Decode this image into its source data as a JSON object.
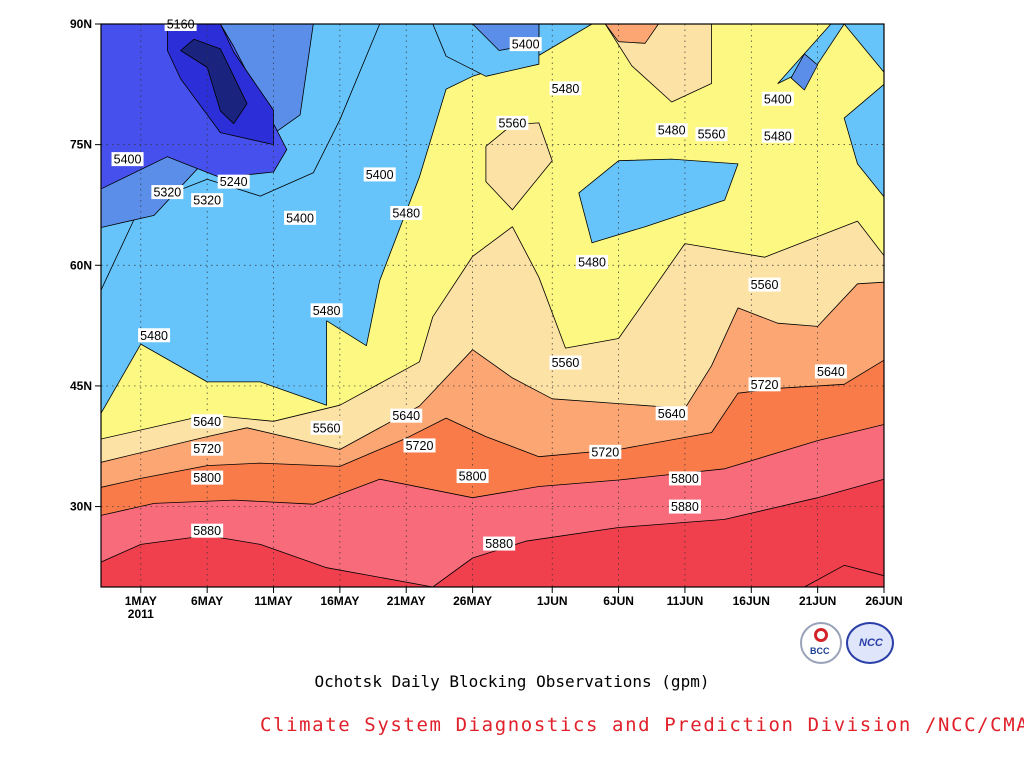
{
  "figure": {
    "title": "Ochotsk Daily Blocking Observations (gpm)",
    "credit": "Climate System Diagnostics and Prediction Division /NCC/CMA",
    "logos": [
      {
        "name": "bcc-logo",
        "text": "BCC"
      },
      {
        "name": "ncc-logo",
        "text": "NCC"
      }
    ]
  },
  "chart_data": {
    "type": "heatmap",
    "subtype": "filled-contour",
    "title": "Ochotsk Daily Blocking Observations (gpm)",
    "xlabel": "",
    "ylabel": "",
    "x_range": [
      "2011-04-28",
      "2011-06-26"
    ],
    "y_range": [
      20,
      90
    ],
    "x_ticks": [
      {
        "date": "2011-05-01",
        "label": "1MAY",
        "sublabel": "2011"
      },
      {
        "date": "2011-05-06",
        "label": "6MAY"
      },
      {
        "date": "2011-05-11",
        "label": "11MAY"
      },
      {
        "date": "2011-05-16",
        "label": "16MAY"
      },
      {
        "date": "2011-05-21",
        "label": "21MAY"
      },
      {
        "date": "2011-05-26",
        "label": "26MAY"
      },
      {
        "date": "2011-06-01",
        "label": "1JUN"
      },
      {
        "date": "2011-06-06",
        "label": "6JUN"
      },
      {
        "date": "2011-06-11",
        "label": "11JUN"
      },
      {
        "date": "2011-06-16",
        "label": "16JUN"
      },
      {
        "date": "2011-06-21",
        "label": "21JUN"
      },
      {
        "date": "2011-06-26",
        "label": "26JUN"
      }
    ],
    "y_ticks": [
      {
        "lat": 30,
        "label": "30N"
      },
      {
        "lat": 45,
        "label": "45N"
      },
      {
        "lat": 60,
        "label": "60N"
      },
      {
        "lat": 75,
        "label": "75N"
      },
      {
        "lat": 90,
        "label": "90N"
      }
    ],
    "grid": true,
    "contour_levels": [
      5160,
      5240,
      5320,
      5400,
      5480,
      5560,
      5640,
      5720,
      5800,
      5880
    ],
    "fill_colors": [
      "#1a237d",
      "#2c2fd8",
      "#4650ec",
      "#5b8ee8",
      "#66c4fb",
      "#fcf882",
      "#fde2a6",
      "#fba673",
      "#fa7b4a",
      "#f76b7b",
      "#f0404e"
    ],
    "bands": [
      {
        "low": 5880,
        "high": null,
        "color": "#f0404e",
        "poly": [
          [
            "2011-04-28",
            20
          ],
          [
            "2011-06-26",
            20
          ],
          [
            "2011-06-26",
            33.4
          ],
          [
            "2011-06-21",
            31.1
          ],
          [
            "2011-06-14",
            28.4
          ],
          [
            "2011-06-06",
            27.4
          ],
          [
            "2011-05-30",
            25.7
          ],
          [
            "2011-05-26",
            23.6
          ],
          [
            "2011-05-23",
            20
          ],
          [
            "2011-05-15",
            22.4
          ],
          [
            "2011-05-10",
            25.3
          ],
          [
            "2011-05-06",
            26.4
          ],
          [
            "2011-05-01",
            25.3
          ],
          [
            "2011-04-28",
            23.1
          ]
        ]
      },
      {
        "low": 5800,
        "high": 5880,
        "color": "#f76b7b",
        "poly": [
          [
            "2011-04-28",
            20
          ],
          [
            "2011-06-26",
            20
          ],
          [
            "2011-06-26",
            40.2
          ],
          [
            "2011-06-21",
            38.2
          ],
          [
            "2011-06-14",
            34.7
          ],
          [
            "2011-06-06",
            33.3
          ],
          [
            "2011-05-31",
            32.5
          ],
          [
            "2011-05-26",
            31.1
          ],
          [
            "2011-05-19",
            33.4
          ],
          [
            "2011-05-14",
            30.3
          ],
          [
            "2011-05-08",
            30.8
          ],
          [
            "2011-05-02",
            30.4
          ],
          [
            "2011-04-28",
            28.9
          ]
        ]
      },
      {
        "low": 5720,
        "high": 5800,
        "color": "#fa7b4a",
        "poly": [
          [
            "2011-04-28",
            20
          ],
          [
            "2011-06-26",
            20
          ],
          [
            "2011-06-26",
            48.2
          ],
          [
            "2011-06-23",
            45.2
          ],
          [
            "2011-06-18",
            44.7
          ],
          [
            "2011-06-15",
            44.1
          ],
          [
            "2011-06-13",
            39.2
          ],
          [
            "2011-06-06",
            37.1
          ],
          [
            "2011-05-31",
            36.2
          ],
          [
            "2011-05-27",
            38.7
          ],
          [
            "2011-05-24",
            41.0
          ],
          [
            "2011-05-21",
            38.5
          ],
          [
            "2011-05-16",
            35.0
          ],
          [
            "2011-05-10",
            35.4
          ],
          [
            "2011-05-06",
            35.1
          ],
          [
            "2011-05-01",
            33.5
          ],
          [
            "2011-04-28",
            32.4
          ]
        ]
      },
      {
        "low": 5640,
        "high": 5720,
        "color": "#fba673",
        "poly": [
          [
            "2011-04-28",
            20
          ],
          [
            "2011-06-26",
            20
          ],
          [
            "2011-06-26",
            57.9
          ],
          [
            "2011-06-24",
            57.7
          ],
          [
            "2011-06-21",
            52.4
          ],
          [
            "2011-06-18",
            52.8
          ],
          [
            "2011-06-15",
            54.7
          ],
          [
            "2011-06-13",
            47.5
          ],
          [
            "2011-06-11",
            42.2
          ],
          [
            "2011-06-06",
            42.8
          ],
          [
            "2011-06-01",
            43.4
          ],
          [
            "2011-05-29",
            46.0
          ],
          [
            "2011-05-26",
            49.5
          ],
          [
            "2011-05-22",
            42.5
          ],
          [
            "2011-05-16",
            37.1
          ],
          [
            "2011-05-09",
            39.8
          ],
          [
            "2011-05-06",
            38.7
          ],
          [
            "2011-04-28",
            35.5
          ]
        ]
      },
      {
        "low": 5560,
        "high": 5640,
        "color": "#fde2a6",
        "poly": [
          [
            "2011-04-28",
            20
          ],
          [
            "2011-06-26",
            20
          ],
          [
            "2011-06-26",
            61.2
          ],
          [
            "2011-06-24",
            65.5
          ],
          [
            "2011-06-17",
            61.0
          ],
          [
            "2011-06-11",
            62.7
          ],
          [
            "2011-06-06",
            50.9
          ],
          [
            "2011-06-02",
            49.7
          ],
          [
            "2011-05-31",
            58.5
          ],
          [
            "2011-05-29",
            64.8
          ],
          [
            "2011-05-26",
            61.1
          ],
          [
            "2011-05-23",
            53.6
          ],
          [
            "2011-05-22",
            48.0
          ],
          [
            "2011-05-16",
            42.6
          ],
          [
            "2011-05-11",
            40.6
          ],
          [
            "2011-05-06",
            41.4
          ],
          [
            "2011-04-28",
            38.4
          ]
        ]
      },
      {
        "low": 5480,
        "high": 5560,
        "color": "#fcf882",
        "poly": [
          [
            "2011-04-28",
            20
          ],
          [
            "2011-06-26",
            20
          ],
          [
            "2011-06-26",
            84.0
          ],
          [
            "2011-06-23",
            90.0
          ],
          [
            "2011-06-04",
            90.0
          ],
          [
            "2011-05-31",
            86.1
          ],
          [
            "2011-05-26",
            83.5
          ],
          [
            "2011-05-24",
            81.9
          ],
          [
            "2011-05-22",
            71.0
          ],
          [
            "2011-05-19",
            58.1
          ],
          [
            "2011-05-18",
            50.0
          ],
          [
            "2011-05-15",
            53.1
          ],
          [
            "2011-05-15",
            42.6
          ],
          [
            "2011-05-10",
            45.5
          ],
          [
            "2011-05-06",
            45.5
          ],
          [
            "2011-05-01",
            50.2
          ],
          [
            "2011-04-28",
            41.6
          ]
        ]
      },
      {
        "low": 5400,
        "high": 5480,
        "color": "#66c4fb",
        "poly": [
          [
            "2011-04-28",
            56.9
          ],
          [
            "2011-05-01",
            67.5
          ],
          [
            "2011-05-06",
            70.7
          ],
          [
            "2011-05-10",
            68.6
          ],
          [
            "2011-05-14",
            71.5
          ],
          [
            "2011-05-16",
            78.1
          ],
          [
            "2011-05-19",
            90.0
          ],
          [
            "2011-04-28",
            90.0
          ]
        ]
      },
      {
        "low": 5320,
        "high": 5400,
        "color": "#5b8ee8",
        "poly": [
          [
            "2011-04-28",
            64.7
          ],
          [
            "2011-05-02",
            66.2
          ],
          [
            "2011-05-06",
            73.3
          ],
          [
            "2011-05-10",
            75.2
          ],
          [
            "2011-05-13",
            78.7
          ],
          [
            "2011-05-14",
            90.0
          ],
          [
            "2011-04-28",
            90.0
          ]
        ]
      },
      {
        "low": 5240,
        "high": 5320,
        "color": "#4650ec",
        "poly": [
          [
            "2011-04-28",
            69.5
          ],
          [
            "2011-05-03",
            73.5
          ],
          [
            "2011-05-07",
            70.9
          ],
          [
            "2011-05-11",
            71.6
          ],
          [
            "2011-05-12",
            74.4
          ],
          [
            "2011-05-08",
            87.2
          ],
          [
            "2011-05-07",
            90.0
          ],
          [
            "2011-04-28",
            90.0
          ]
        ]
      },
      {
        "low": 5160,
        "high": 5240,
        "color": "#2c2fd8",
        "poly": [
          [
            "2011-05-03",
            86.7
          ],
          [
            "2011-05-04",
            83.2
          ],
          [
            "2011-05-07",
            76.5
          ],
          [
            "2011-05-11",
            75.0
          ],
          [
            "2011-05-11",
            79.3
          ],
          [
            "2011-05-08",
            86.5
          ],
          [
            "2011-05-07",
            90.0
          ],
          [
            "2011-05-03",
            90.0
          ]
        ]
      },
      {
        "low": null,
        "high": 5160,
        "color": "#1a237d",
        "poly": [
          [
            "2011-05-04",
            86.7
          ],
          [
            "2011-05-06",
            84.6
          ],
          [
            "2011-05-07",
            79.2
          ],
          [
            "2011-05-08",
            77.6
          ],
          [
            "2011-05-09",
            80.1
          ],
          [
            "2011-05-07",
            86.9
          ],
          [
            "2011-05-05",
            88.1
          ]
        ]
      }
    ],
    "islands": [
      {
        "level": 5480,
        "color": "#66c4fb",
        "poly": [
          [
            "2011-05-23",
            90.0
          ],
          [
            "2011-05-31",
            90.0
          ],
          [
            "2011-05-31",
            85.0
          ],
          [
            "2011-05-27",
            83.5
          ],
          [
            "2011-05-24",
            86.0
          ]
        ]
      },
      {
        "level": 5400,
        "color": "#5b8ee8",
        "poly": [
          [
            "2011-05-26",
            90.0
          ],
          [
            "2011-05-31",
            90.0
          ],
          [
            "2011-05-31",
            87.6
          ],
          [
            "2011-05-28",
            86.7
          ]
        ]
      },
      {
        "level": 5480,
        "color": "#66c4fb",
        "poly": [
          [
            "2011-06-03",
            69.0
          ],
          [
            "2011-06-06",
            73.0
          ],
          [
            "2011-06-10",
            73.2
          ],
          [
            "2011-06-15",
            72.6
          ],
          [
            "2011-06-14",
            68.1
          ],
          [
            "2011-06-08",
            64.8
          ],
          [
            "2011-06-04",
            62.8
          ]
        ]
      },
      {
        "level": 5560,
        "color": "#fde2a6",
        "poly": [
          [
            "2011-05-27",
            74.8
          ],
          [
            "2011-05-29",
            77.5
          ],
          [
            "2011-05-31",
            77.7
          ],
          [
            "2011-06-01",
            73.0
          ],
          [
            "2011-05-29",
            66.9
          ],
          [
            "2011-05-27",
            70.4
          ]
        ]
      },
      {
        "level": 5560,
        "color": "#fde2a6",
        "poly": [
          [
            "2011-06-05",
            90.0
          ],
          [
            "2011-06-13",
            90.0
          ],
          [
            "2011-06-13",
            82.6
          ],
          [
            "2011-06-10",
            80.3
          ],
          [
            "2011-06-07",
            84.8
          ]
        ]
      },
      {
        "level": 5640,
        "color": "#fba673",
        "poly": [
          [
            "2011-06-05",
            90.0
          ],
          [
            "2011-06-09",
            90.0
          ],
          [
            "2011-06-08",
            87.6
          ],
          [
            "2011-06-06",
            87.8
          ]
        ]
      },
      {
        "level": 5480,
        "color": "#66c4fb",
        "poly": [
          [
            "2011-06-18",
            82.6
          ],
          [
            "2011-06-22",
            90.0
          ],
          [
            "2011-06-23",
            90.0
          ],
          [
            "2011-06-21",
            85.0
          ]
        ]
      },
      {
        "level": 5400,
        "color": "#5b8ee8",
        "poly": [
          [
            "2011-06-19",
            83.3
          ],
          [
            "2011-06-20",
            86.3
          ],
          [
            "2011-06-21",
            84.9
          ],
          [
            "2011-06-20",
            81.8
          ]
        ]
      },
      {
        "level": 5480,
        "color": "#66c4fb",
        "poly": [
          [
            "2011-06-26",
            82.5
          ],
          [
            "2011-06-23",
            78.3
          ],
          [
            "2011-06-24",
            72.6
          ],
          [
            "2011-06-26",
            68.5
          ]
        ]
      },
      {
        "level": 5880,
        "color": "#f0404e",
        "poly": [
          [
            "2011-06-20",
            20.0
          ],
          [
            "2011-06-23",
            22.7
          ],
          [
            "2011-06-26",
            21.4
          ],
          [
            "2011-06-26",
            20.0
          ]
        ]
      }
    ],
    "contour_labels": [
      {
        "text": "5160",
        "date": "2011-05-04",
        "lat": 90.0
      },
      {
        "text": "5400",
        "date": "2011-04-30",
        "lat": 73.2
      },
      {
        "text": "5320",
        "date": "2011-05-03",
        "lat": 69.1
      },
      {
        "text": "5240",
        "date": "2011-05-08",
        "lat": 70.4
      },
      {
        "text": "5320",
        "date": "2011-05-06",
        "lat": 68.1
      },
      {
        "text": "5400",
        "date": "2011-05-13",
        "lat": 65.9
      },
      {
        "text": "5400",
        "date": "2011-05-19",
        "lat": 71.3
      },
      {
        "text": "5480",
        "date": "2011-05-21",
        "lat": 66.5
      },
      {
        "text": "5480",
        "date": "2011-05-15",
        "lat": 54.4
      },
      {
        "text": "5480",
        "date": "2011-05-02",
        "lat": 51.3
      },
      {
        "text": "5400",
        "date": "2011-05-30",
        "lat": 87.5
      },
      {
        "text": "5480",
        "date": "2011-06-02",
        "lat": 82.0
      },
      {
        "text": "5560",
        "date": "2011-05-29",
        "lat": 77.7
      },
      {
        "text": "5480",
        "date": "2011-06-10",
        "lat": 76.8
      },
      {
        "text": "5560",
        "date": "2011-06-13",
        "lat": 76.3
      },
      {
        "text": "5400",
        "date": "2011-06-18",
        "lat": 80.7
      },
      {
        "text": "5480",
        "date": "2011-06-18",
        "lat": 76.1
      },
      {
        "text": "5480",
        "date": "2011-06-04",
        "lat": 60.4
      },
      {
        "text": "5560",
        "date": "2011-06-17",
        "lat": 57.6
      },
      {
        "text": "5560",
        "date": "2011-06-02",
        "lat": 47.9
      },
      {
        "text": "5640",
        "date": "2011-06-22",
        "lat": 46.8
      },
      {
        "text": "5720",
        "date": "2011-06-17",
        "lat": 45.2
      },
      {
        "text": "5640",
        "date": "2011-06-10",
        "lat": 41.6
      },
      {
        "text": "5640",
        "date": "2011-05-06",
        "lat": 40.6
      },
      {
        "text": "5560",
        "date": "2011-05-15",
        "lat": 39.8
      },
      {
        "text": "5640",
        "date": "2011-05-21",
        "lat": 41.3
      },
      {
        "text": "5720",
        "date": "2011-05-22",
        "lat": 37.6
      },
      {
        "text": "5720",
        "date": "2011-05-06",
        "lat": 37.2
      },
      {
        "text": "5720",
        "date": "2011-06-05",
        "lat": 36.8
      },
      {
        "text": "5800",
        "date": "2011-05-06",
        "lat": 33.6
      },
      {
        "text": "5800",
        "date": "2011-05-26",
        "lat": 33.8
      },
      {
        "text": "5800",
        "date": "2011-06-11",
        "lat": 33.5
      },
      {
        "text": "5880",
        "date": "2011-06-11",
        "lat": 30.0
      },
      {
        "text": "5880",
        "date": "2011-05-06",
        "lat": 27.0
      },
      {
        "text": "5880",
        "date": "2011-05-28",
        "lat": 25.4
      }
    ]
  }
}
